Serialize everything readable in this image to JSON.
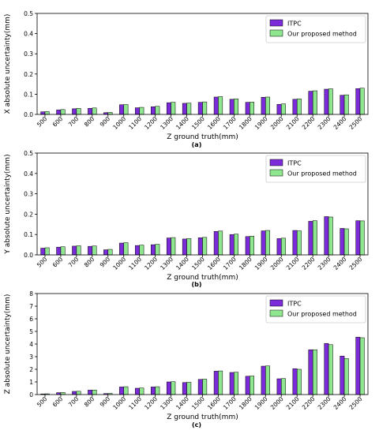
{
  "chart_data": [
    {
      "type": "bar",
      "panel_label": "(a)",
      "xlabel": "Z ground truth(mm)",
      "ylabel": "X absolute uncertainty(mm)",
      "ylim": [
        0,
        0.5
      ],
      "yticks": [
        "0.0",
        "0.1",
        "0.2",
        "0.3",
        "0.4",
        "0.5"
      ],
      "legend_position": "top-right",
      "grid": false,
      "categories": [
        "500",
        "600",
        "700",
        "800",
        "900",
        "1000",
        "1100",
        "1200",
        "1300",
        "1400",
        "1500",
        "1600",
        "1700",
        "1800",
        "1900",
        "2000",
        "2100",
        "2200",
        "2300",
        "2400",
        "2500"
      ],
      "series": [
        {
          "name": "ITPC",
          "color": "#7b2bd9",
          "values": [
            0.013,
            0.022,
            0.028,
            0.03,
            0.009,
            0.048,
            0.033,
            0.038,
            0.058,
            0.055,
            0.06,
            0.086,
            0.075,
            0.06,
            0.085,
            0.05,
            0.075,
            0.115,
            0.125,
            0.095,
            0.128
          ]
        },
        {
          "name": "Our proposed method",
          "color": "#8ee68e",
          "values": [
            0.014,
            0.024,
            0.03,
            0.032,
            0.01,
            0.049,
            0.035,
            0.04,
            0.06,
            0.056,
            0.062,
            0.088,
            0.077,
            0.061,
            0.086,
            0.052,
            0.077,
            0.117,
            0.127,
            0.097,
            0.13
          ]
        }
      ]
    },
    {
      "type": "bar",
      "panel_label": "(b)",
      "xlabel": "Z ground truth(mm)",
      "ylabel": "Y absolute uncertainty(mm)",
      "ylim": [
        0,
        0.5
      ],
      "yticks": [
        "0.0",
        "0.1",
        "0.2",
        "0.3",
        "0.4",
        "0.5"
      ],
      "legend_position": "top-right",
      "grid": false,
      "categories": [
        "500",
        "600",
        "700",
        "800",
        "900",
        "1000",
        "1100",
        "1200",
        "1300",
        "1400",
        "1500",
        "1600",
        "1700",
        "1800",
        "1900",
        "2000",
        "2100",
        "2200",
        "2300",
        "2400",
        "2500"
      ],
      "series": [
        {
          "name": "ITPC",
          "color": "#7b2bd9",
          "values": [
            0.033,
            0.038,
            0.043,
            0.042,
            0.025,
            0.058,
            0.046,
            0.05,
            0.083,
            0.078,
            0.084,
            0.115,
            0.1,
            0.09,
            0.118,
            0.08,
            0.12,
            0.165,
            0.188,
            0.13,
            0.168
          ]
        },
        {
          "name": "Our proposed method",
          "color": "#8ee68e",
          "values": [
            0.035,
            0.04,
            0.045,
            0.044,
            0.027,
            0.06,
            0.048,
            0.052,
            0.085,
            0.08,
            0.086,
            0.117,
            0.102,
            0.092,
            0.12,
            0.082,
            0.118,
            0.168,
            0.186,
            0.128,
            0.167
          ]
        }
      ]
    },
    {
      "type": "bar",
      "panel_label": "(c)",
      "xlabel": "Z ground truth(mm)",
      "ylabel": "Z absolute uncertainty(mm)",
      "ylim": [
        0,
        8
      ],
      "yticks": [
        "0",
        "1",
        "2",
        "3",
        "4",
        "5",
        "6",
        "7",
        "8"
      ],
      "legend_position": "top-right",
      "grid": false,
      "categories": [
        "500",
        "600",
        "700",
        "800",
        "900",
        "1000",
        "1100",
        "1200",
        "1300",
        "1400",
        "1500",
        "1600",
        "1700",
        "1800",
        "1900",
        "2000",
        "2100",
        "2200",
        "2300",
        "2400",
        "2500"
      ],
      "series": [
        {
          "name": "ITPC",
          "color": "#7b2bd9",
          "values": [
            0.05,
            0.15,
            0.25,
            0.35,
            0.08,
            0.6,
            0.5,
            0.6,
            1.0,
            0.95,
            1.2,
            1.85,
            1.75,
            1.45,
            2.25,
            1.25,
            2.05,
            3.55,
            4.05,
            3.05,
            4.55
          ]
        },
        {
          "name": "Our proposed method",
          "color": "#8ee68e",
          "values": [
            0.06,
            0.16,
            0.26,
            0.36,
            0.09,
            0.62,
            0.52,
            0.62,
            1.02,
            0.97,
            1.22,
            1.87,
            1.77,
            1.47,
            2.27,
            1.27,
            2.0,
            3.55,
            3.95,
            2.85,
            4.5
          ]
        }
      ]
    }
  ]
}
